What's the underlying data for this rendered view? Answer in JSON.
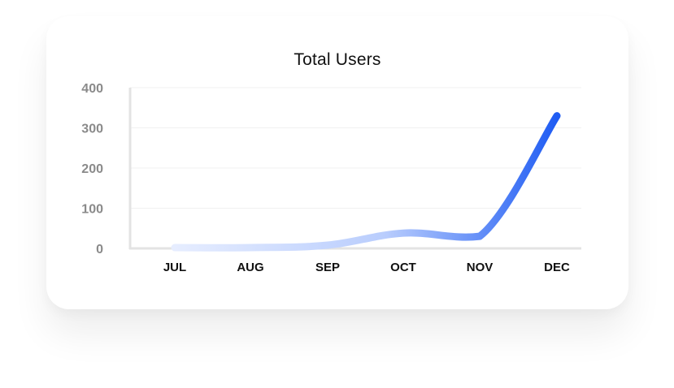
{
  "chart_data": {
    "type": "line",
    "title": "Total Users",
    "xlabel": "",
    "ylabel": "",
    "categories": [
      "JUL",
      "AUG",
      "SEP",
      "OCT",
      "NOV",
      "DEC"
    ],
    "series": [
      {
        "values": [
          2,
          2,
          8,
          38,
          30,
          330
        ]
      }
    ],
    "ylim": [
      0,
      400
    ],
    "yticks": [
      0,
      100,
      200,
      300,
      400
    ],
    "grid": true,
    "legend": "none",
    "colors": {
      "line_start": "#e6edff",
      "line_end": "#1f5cf3",
      "grid": "#f0f0f0",
      "axis": "#e3e3e3"
    }
  }
}
